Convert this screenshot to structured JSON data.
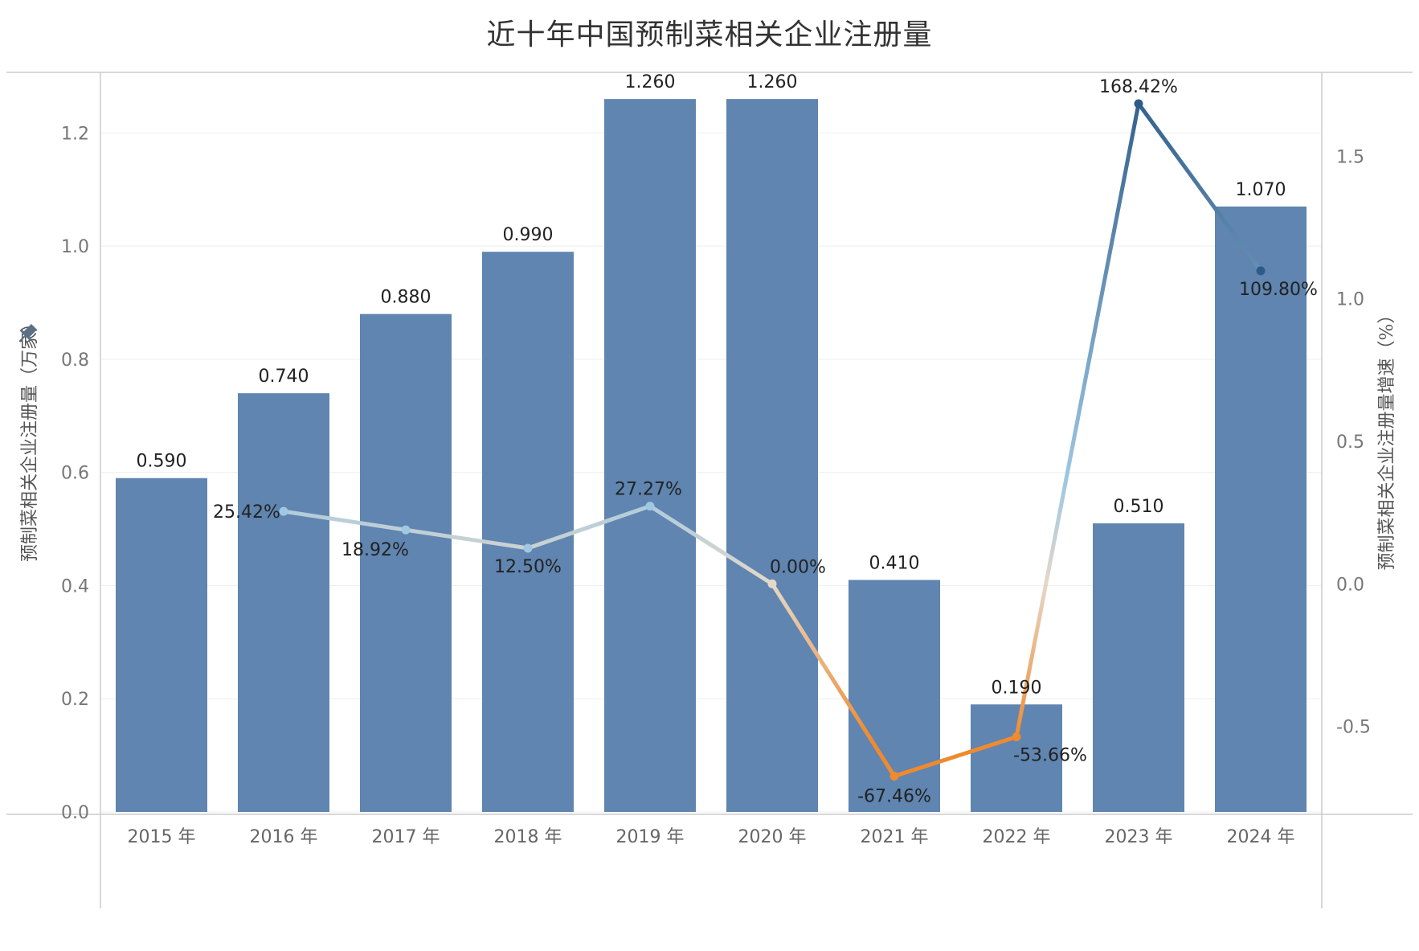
{
  "title": "近十年中国预制菜相关企业注册量",
  "colors": {
    "bar": "#5f85b0",
    "grid": "#eeeeee",
    "axis": "#cccccc",
    "line_positive_dark": "#2d5b87",
    "line_positive_light": "#9fc8e3",
    "line_neutral": "#e5d8c8",
    "line_negative": "#ef8a2f"
  },
  "chart_data": {
    "type": "bar",
    "combo": "bar + line (dual axis)",
    "title": "近十年中国预制菜相关企业注册量",
    "categories": [
      "2015 年",
      "2016 年",
      "2017 年",
      "2018 年",
      "2019 年",
      "2020 年",
      "2021 年",
      "2022 年",
      "2023 年",
      "2024 年"
    ],
    "ylabel": "预制菜相关企业注册量（万家）",
    "y2label": "预制菜相关企业注册量增速（%）",
    "ylim": [
      0.0,
      1.3
    ],
    "y2lim": [
      -0.8,
      1.78
    ],
    "yticks": [
      "0.0",
      "0.2",
      "0.4",
      "0.6",
      "0.8",
      "1.0",
      "1.2"
    ],
    "y2ticks": [
      "-0.5",
      "0.0",
      "0.5",
      "1.0",
      "1.5"
    ],
    "grid": true,
    "series": [
      {
        "type": "bar",
        "values": [
          0.59,
          0.74,
          0.88,
          0.99,
          1.26,
          1.26,
          0.41,
          0.19,
          0.51,
          1.07
        ],
        "labels": [
          "0.590",
          "0.740",
          "0.880",
          "0.990",
          "1.260",
          "1.260",
          "0.410",
          "0.190",
          "0.510",
          "1.070"
        ]
      },
      {
        "type": "line",
        "axis": "right",
        "values": [
          null,
          0.2542,
          0.1892,
          0.125,
          0.2727,
          0.0,
          -0.6746,
          -0.5366,
          1.6842,
          1.098
        ],
        "labels": [
          "",
          "25.42%",
          "18.92%",
          "12.50%",
          "27.27%",
          "0.00%",
          "-67.46%",
          "-53.66%",
          "168.42%",
          "109.80%"
        ]
      }
    ]
  }
}
